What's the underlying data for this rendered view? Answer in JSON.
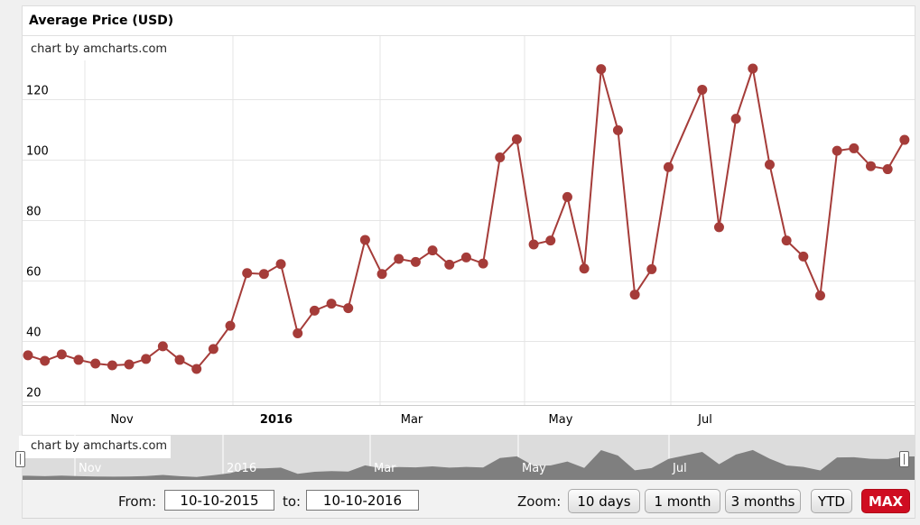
{
  "title": "Average Price (USD)",
  "branding": "chart by amcharts.com",
  "colors": {
    "line": "#a53c39",
    "bullet": "#a53c39",
    "grid": "#e5e5e5",
    "axis_line": "#cccccc",
    "scrollbar_bg": "#dcdcdc",
    "scrollbar_graph": "#7f7f7f",
    "max_button_red": "#cf0d21",
    "page_bg": "#f0f0f0"
  },
  "chart_data": {
    "type": "line",
    "title": "Average Price (USD)",
    "start_date": "2015-10-10",
    "x": [
      "2015-10-10",
      "2015-10-17",
      "2015-10-24",
      "2015-10-31",
      "2015-11-07",
      "2015-11-14",
      "2015-11-21",
      "2015-11-28",
      "2015-12-05",
      "2015-12-12",
      "2015-12-19",
      "2015-12-26",
      "2016-01-02",
      "2016-01-09",
      "2016-01-16",
      "2016-01-23",
      "2016-01-30",
      "2016-02-06",
      "2016-02-13",
      "2016-02-20",
      "2016-02-27",
      "2016-03-05",
      "2016-03-12",
      "2016-03-19",
      "2016-03-26",
      "2016-04-02",
      "2016-04-09",
      "2016-04-16",
      "2016-04-23",
      "2016-04-30",
      "2016-05-07",
      "2016-05-14",
      "2016-05-21",
      "2016-05-28",
      "2016-06-04",
      "2016-06-11",
      "2016-06-18",
      "2016-06-25",
      "2016-07-02",
      "2016-07-16",
      "2016-07-23",
      "2016-07-30",
      "2016-08-06",
      "2016-08-13",
      "2016-08-20",
      "2016-08-27",
      "2016-09-03",
      "2016-09-10",
      "2016-09-17",
      "2016-09-24",
      "2016-10-01",
      "2016-10-08"
    ],
    "values": [
      35.4,
      33.6,
      35.7,
      33.9,
      32.7,
      32.1,
      32.4,
      34.2,
      38.4,
      33.9,
      30.9,
      37.5,
      45.2,
      62.6,
      62.3,
      65.6,
      42.7,
      50.2,
      52.5,
      51.0,
      73.6,
      62.3,
      67.3,
      66.3,
      70.1,
      65.4,
      67.8,
      65.8,
      100.9,
      106.9,
      72.1,
      73.4,
      87.8,
      64.1,
      130.1,
      109.9,
      55.5,
      63.9,
      97.7,
      123.3,
      77.8,
      113.7,
      130.3,
      98.5,
      73.4,
      68.1,
      55.2,
      103.1,
      103.9,
      98.0,
      97.0,
      106.7
    ],
    "y_ticks": [
      20,
      40,
      60,
      80,
      100,
      120
    ],
    "ylim": [
      19,
      141
    ],
    "grid": true,
    "legend": false
  },
  "x_axis": {
    "labels": [
      "Nov",
      "2016",
      "Mar",
      "May",
      "Jul"
    ]
  },
  "scrollbar": {
    "labels": [
      "Nov",
      "2016",
      "Mar",
      "May",
      "Jul"
    ]
  },
  "controls": {
    "from_label": "From:",
    "from_value": "10-10-2015",
    "to_label": "to:",
    "to_value": "10-10-2016",
    "zoom_label": "Zoom:",
    "zoom_buttons": [
      {
        "label": "10 days",
        "active": false
      },
      {
        "label": "1 month",
        "active": false
      },
      {
        "label": "3 months",
        "active": false
      },
      {
        "label": "YTD",
        "active": false
      },
      {
        "label": "MAX",
        "active": true
      }
    ]
  }
}
